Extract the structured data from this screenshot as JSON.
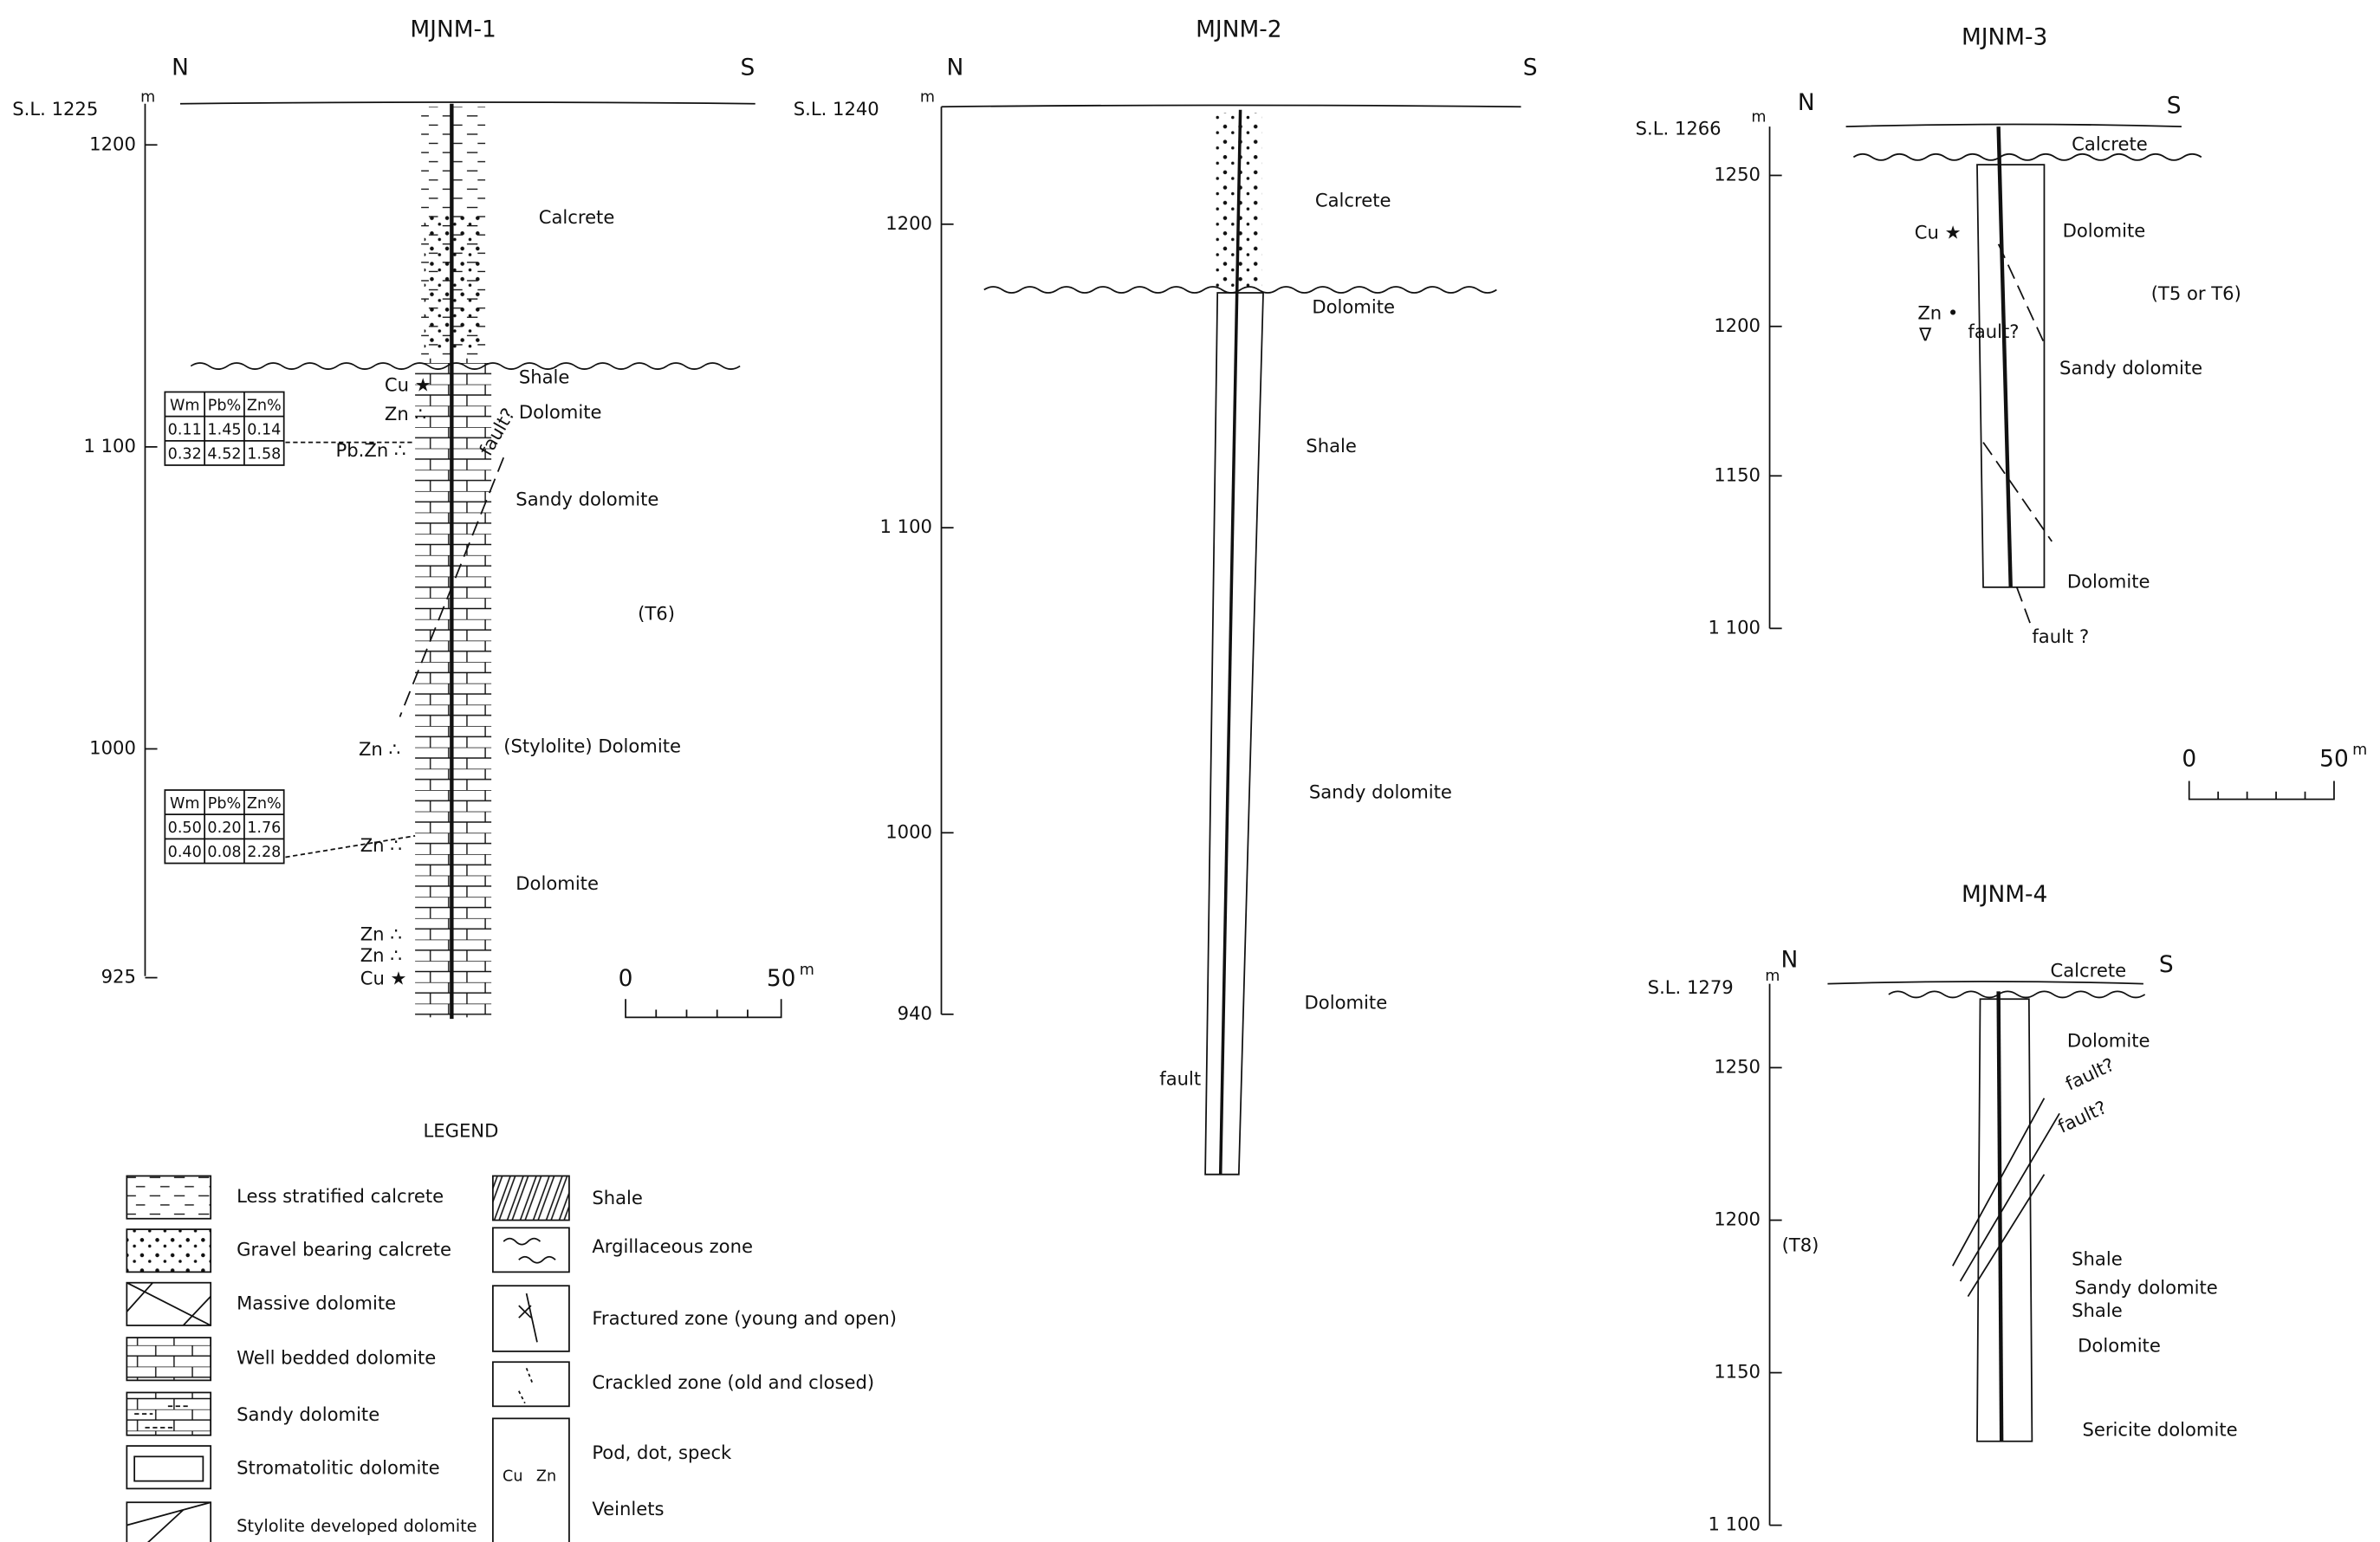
{
  "holes": [
    {
      "title": "MJNM-1",
      "north": "N",
      "south": "S",
      "surface": "S.L. 1225",
      "surface_unit": "m",
      "elevations": [
        "1200",
        "1 100",
        "1000",
        "925"
      ],
      "labels": [
        "Calcrete",
        "Shale",
        "Dolomite",
        "Sandy dolomite",
        "(T6)",
        "(Stylolite) Dolomite",
        "Dolomite"
      ],
      "faults": [
        "fault?"
      ],
      "minerals": [
        "Cu ★",
        "Zn ∴",
        "Pb.Zn ∴",
        "Zn ∴",
        "Zn ∴",
        "Zn ∴",
        "Zn ∴",
        "Cu ★"
      ],
      "assays": [
        {
          "header": [
            "Wm",
            "Pb%",
            "Zn%"
          ],
          "rows": [
            [
              "0.11",
              "1.45",
              "0.14"
            ],
            [
              "0.32",
              "4.52",
              "1.58"
            ]
          ]
        },
        {
          "header": [
            "Wm",
            "Pb%",
            "Zn%"
          ],
          "rows": [
            [
              "0.50",
              "0.20",
              "1.76"
            ],
            [
              "0.40",
              "0.08",
              "2.28"
            ]
          ]
        }
      ]
    },
    {
      "title": "MJNM-2",
      "north": "N",
      "south": "S",
      "surface": "S.L. 1240",
      "surface_unit": "m",
      "elevations": [
        "1200",
        "1 100",
        "1000",
        "940"
      ],
      "labels": [
        "Calcrete",
        "Dolomite",
        "Shale",
        "Sandy dolomite",
        "Dolomite"
      ],
      "faults": [
        "fault"
      ]
    },
    {
      "title": "MJNM-3",
      "north": "N",
      "south": "S",
      "surface": "S.L. 1266",
      "surface_unit": "m",
      "elevations": [
        "1250",
        "1200",
        "1150",
        "1 100"
      ],
      "labels": [
        "Calcrete",
        "Dolomite",
        "(T5 or T6)",
        "Sandy dolomite",
        "Dolomite"
      ],
      "faults": [
        "fault?",
        "fault ?"
      ],
      "minerals": [
        "Cu ★",
        "Zn •",
        "∇"
      ]
    },
    {
      "title": "MJNM-4",
      "north": "N",
      "south": "S",
      "surface": "S.L. 1279",
      "surface_unit": "m",
      "elevations": [
        "1250",
        "1200",
        "1150",
        "1 100"
      ],
      "labels": [
        "Calcrete",
        "Dolomite",
        "(T8)",
        "Shale",
        "Sandy dolomite",
        "Shale",
        "Dolomite",
        "Sericite dolomite"
      ],
      "faults": [
        "fault?",
        "fault?"
      ]
    }
  ],
  "scale_bars": [
    {
      "start": "0",
      "end": "50",
      "unit": "m"
    },
    {
      "start": "0",
      "end": "50",
      "unit": "m"
    }
  ],
  "legend": {
    "title": "LEGEND",
    "items": [
      "Less stratified calcrete",
      "Gravel bearing calcrete",
      "Massive dolomite",
      "Well bedded dolomite",
      "Sandy dolomite",
      "Stromatolitic dolomite",
      "Stylolite developed dolomite",
      "Shale",
      "Argillaceous zone",
      "Fractured zone (young and open)",
      "Crackled zone (old and closed)",
      "Pod, dot, speck",
      "Veinlets"
    ],
    "symbol_labels": [
      "Cu",
      "Zn"
    ]
  }
}
